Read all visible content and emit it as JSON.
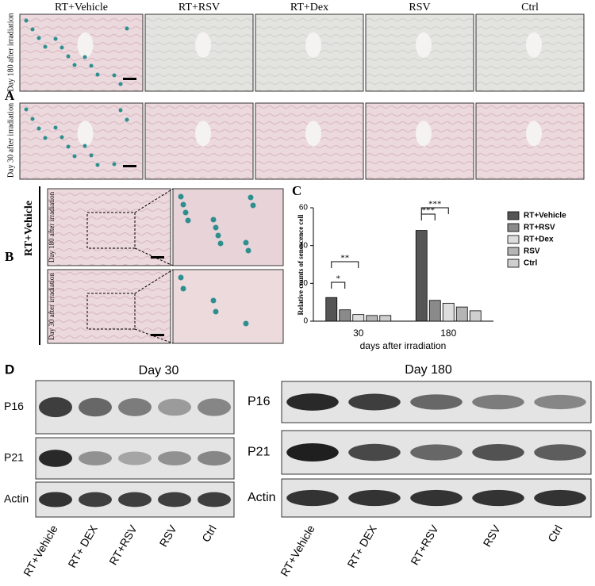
{
  "panel_a": {
    "label": "A",
    "columns": [
      "RT+Vehicle",
      "RT+RSV",
      "RT+Dex",
      "RSV",
      "Ctrl"
    ],
    "rows": [
      "Day 180 after irradiation",
      "Day 30 after irradiation"
    ]
  },
  "panel_b": {
    "label": "B",
    "group": "RT+Vehicle",
    "rows": [
      "Day 180 after irradiation",
      "Day 30 after irradiation"
    ]
  },
  "chart_data": {
    "type": "bar",
    "label": "C",
    "y_label": "Relative counts of senescence cell",
    "x_label": "days after irradiation",
    "categories": [
      "30",
      "180"
    ],
    "series": [
      {
        "name": "RT+Vehicle",
        "color": "#555555",
        "values": [
          12.5,
          48
        ]
      },
      {
        "name": "RT+RSV",
        "color": "#8a8a8a",
        "values": [
          6,
          11
        ]
      },
      {
        "name": "RT+Dex",
        "color": "#dddddd",
        "values": [
          3.5,
          9.5
        ]
      },
      {
        "name": "RSV",
        "color": "#b5b5b5",
        "values": [
          3,
          7.5
        ]
      },
      {
        "name": "Ctrl",
        "color": "#cfcfcf",
        "values": [
          3,
          5.5
        ]
      }
    ],
    "ylim": [
      0,
      60
    ],
    "yticks": [
      0,
      20,
      40,
      60
    ],
    "annotations": [
      "*",
      "**",
      "***",
      "***"
    ]
  },
  "panel_d": {
    "label": "D",
    "day30": {
      "title": "Day 30",
      "rows": [
        "P16",
        "P21",
        "Actin"
      ],
      "lanes": [
        "RT+Vehicle",
        "RT+ DEX",
        "RT+RSV",
        "RSV",
        "Ctrl"
      ]
    },
    "day180": {
      "title": "Day 180",
      "rows": [
        "P16",
        "P21",
        "Actin"
      ],
      "lanes": [
        "RT+Vehicle",
        "RT+ DEX",
        "RT+RSV",
        "RSV",
        "Ctrl"
      ]
    }
  }
}
